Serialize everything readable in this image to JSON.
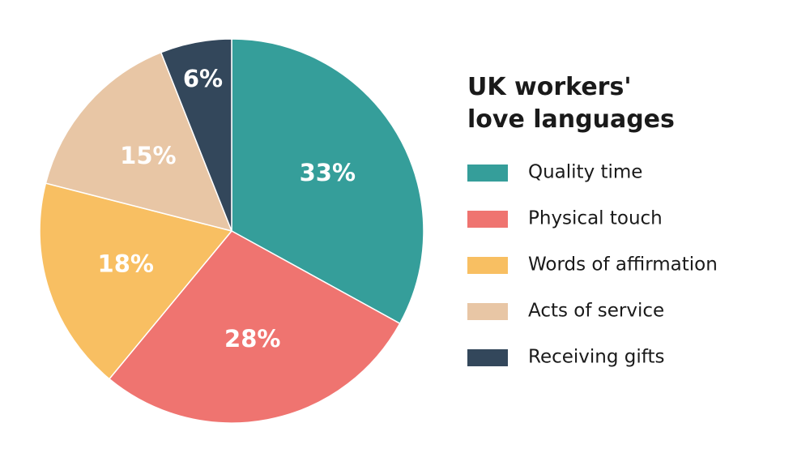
{
  "chart_data": {
    "type": "pie",
    "title": "UK workers' love languages",
    "categories": [
      "Quality time",
      "Physical touch",
      "Words of affirmation",
      "Acts of service",
      "Receiving gifts"
    ],
    "values": [
      33,
      28,
      18,
      15,
      6
    ],
    "value_labels": [
      "33%",
      "28%",
      "18%",
      "15%",
      "6%"
    ],
    "colors": [
      "#359e9a",
      "#ef7470",
      "#f8bf62",
      "#e8c6a5",
      "#33475b"
    ]
  }
}
